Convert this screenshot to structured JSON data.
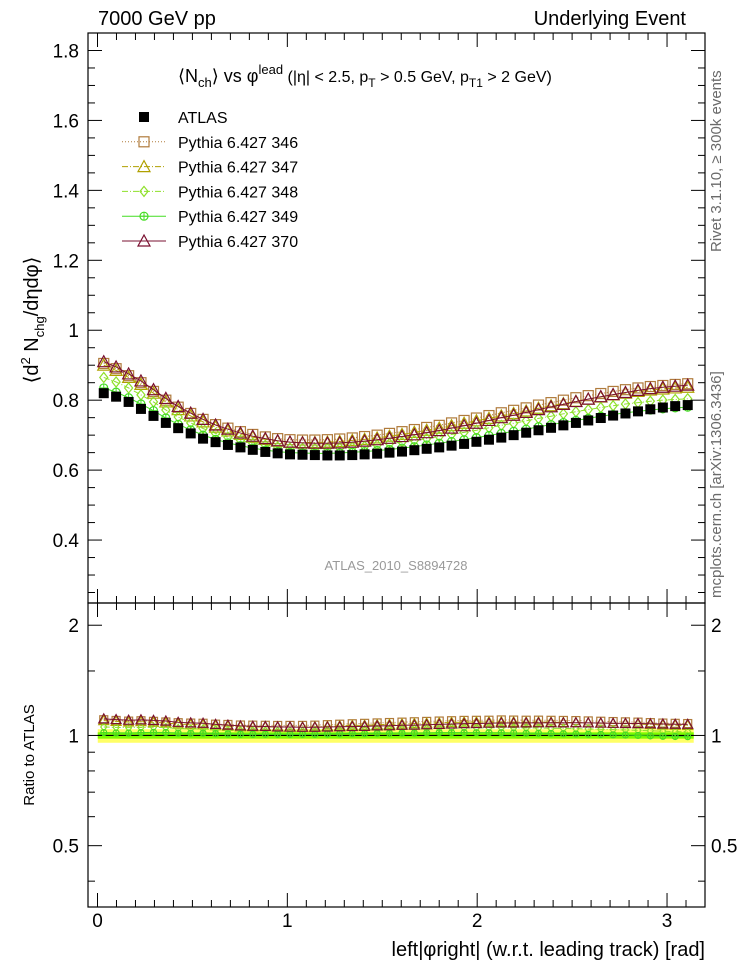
{
  "header": {
    "left": "7000 GeV pp",
    "right": "Underlying Event"
  },
  "side_labels": {
    "rivet": "Rivet 3.1.10, ≥ 300k events",
    "mcplots": "mcplots.cern.ch [arXiv:1306.3436]"
  },
  "colors": {
    "atlas": "#000000",
    "p346": "#b07b3c",
    "p347": "#b0a000",
    "p348": "#8ee02a",
    "p349": "#44dd22",
    "p370": "#7a1030",
    "band_inner": "#7cfc00",
    "band_outer": "#ffff66"
  },
  "chart_data": {
    "type": "scatter",
    "title": "<N_ch> vs φ^lead (|η| < 2.5, p_T > 0.5 GeV, p_T1 > 2 GeV)",
    "analysis_label": "ATLAS_2010_S8894728",
    "xlabel": "left|φright| (w.r.t. leading track) [rad]",
    "ylabel": "⟨d² N_chg/dηdφ⟩",
    "ratio_ylabel": "Ratio to ATLAS",
    "xlim": [
      -0.05,
      3.2
    ],
    "ylim": [
      0.22,
      1.85
    ],
    "ratio_ylim": [
      0.34,
      2.3
    ],
    "x_ticks": [
      0,
      1,
      2,
      3
    ],
    "y_ticks": [
      0.4,
      0.6,
      0.8,
      1,
      1.2,
      1.4,
      1.6,
      1.8
    ],
    "ratio_y_ticks": [
      0.5,
      1,
      2
    ],
    "legend_position": "top-left",
    "x": [
      0.033,
      0.098,
      0.164,
      0.229,
      0.295,
      0.36,
      0.425,
      0.491,
      0.556,
      0.622,
      0.687,
      0.753,
      0.818,
      0.884,
      0.949,
      1.014,
      1.08,
      1.145,
      1.211,
      1.276,
      1.342,
      1.407,
      1.473,
      1.538,
      1.604,
      1.669,
      1.734,
      1.8,
      1.865,
      1.931,
      1.996,
      2.062,
      2.127,
      2.192,
      2.258,
      2.323,
      2.389,
      2.454,
      2.52,
      2.585,
      2.651,
      2.716,
      2.781,
      2.847,
      2.912,
      2.978,
      3.043,
      3.109
    ],
    "series": [
      {
        "name": "ATLAS",
        "marker": "filled-square",
        "values": [
          0.82,
          0.81,
          0.795,
          0.775,
          0.755,
          0.735,
          0.72,
          0.705,
          0.69,
          0.68,
          0.672,
          0.665,
          0.658,
          0.652,
          0.648,
          0.645,
          0.644,
          0.643,
          0.642,
          0.642,
          0.643,
          0.645,
          0.647,
          0.65,
          0.653,
          0.657,
          0.661,
          0.665,
          0.67,
          0.675,
          0.681,
          0.687,
          0.693,
          0.7,
          0.707,
          0.714,
          0.721,
          0.728,
          0.735,
          0.742,
          0.749,
          0.756,
          0.762,
          0.768,
          0.774,
          0.779,
          0.783,
          0.786
        ]
      },
      {
        "name": "Pythia 6.427 346",
        "marker": "open-square",
        "style": "dotted",
        "values": [
          0.905,
          0.89,
          0.87,
          0.85,
          0.825,
          0.8,
          0.78,
          0.762,
          0.745,
          0.73,
          0.72,
          0.71,
          0.702,
          0.695,
          0.69,
          0.687,
          0.686,
          0.686,
          0.687,
          0.689,
          0.692,
          0.696,
          0.7,
          0.705,
          0.71,
          0.716,
          0.722,
          0.728,
          0.735,
          0.742,
          0.749,
          0.756,
          0.764,
          0.771,
          0.778,
          0.786,
          0.793,
          0.8,
          0.807,
          0.813,
          0.819,
          0.825,
          0.83,
          0.835,
          0.839,
          0.842,
          0.845,
          0.847
        ]
      },
      {
        "name": "Pythia 6.427 347",
        "marker": "open-triangle",
        "style": "dash-dot",
        "values": [
          0.9,
          0.885,
          0.865,
          0.845,
          0.82,
          0.795,
          0.773,
          0.755,
          0.738,
          0.723,
          0.712,
          0.702,
          0.694,
          0.688,
          0.683,
          0.68,
          0.679,
          0.679,
          0.68,
          0.682,
          0.685,
          0.688,
          0.692,
          0.697,
          0.702,
          0.708,
          0.714,
          0.72,
          0.727,
          0.734,
          0.741,
          0.748,
          0.755,
          0.762,
          0.769,
          0.777,
          0.784,
          0.79,
          0.797,
          0.803,
          0.809,
          0.815,
          0.82,
          0.825,
          0.829,
          0.832,
          0.835,
          0.837
        ]
      },
      {
        "name": "Pythia 6.427 348",
        "marker": "open-diamond",
        "style": "dash-dot",
        "values": [
          0.865,
          0.852,
          0.835,
          0.815,
          0.795,
          0.772,
          0.752,
          0.735,
          0.719,
          0.705,
          0.694,
          0.685,
          0.677,
          0.671,
          0.666,
          0.663,
          0.662,
          0.661,
          0.662,
          0.663,
          0.665,
          0.668,
          0.672,
          0.676,
          0.68,
          0.685,
          0.69,
          0.696,
          0.702,
          0.708,
          0.714,
          0.721,
          0.728,
          0.734,
          0.741,
          0.748,
          0.754,
          0.761,
          0.767,
          0.773,
          0.779,
          0.784,
          0.789,
          0.793,
          0.797,
          0.8,
          0.802,
          0.804
        ]
      },
      {
        "name": "Pythia 6.427 349",
        "marker": "open-circle-cross",
        "style": "solid",
        "values": [
          0.835,
          0.823,
          0.807,
          0.789,
          0.77,
          0.749,
          0.731,
          0.715,
          0.7,
          0.688,
          0.678,
          0.67,
          0.663,
          0.657,
          0.653,
          0.65,
          0.649,
          0.648,
          0.648,
          0.649,
          0.651,
          0.653,
          0.656,
          0.659,
          0.663,
          0.667,
          0.672,
          0.677,
          0.682,
          0.687,
          0.693,
          0.699,
          0.705,
          0.711,
          0.717,
          0.724,
          0.73,
          0.736,
          0.742,
          0.748,
          0.754,
          0.759,
          0.764,
          0.768,
          0.772,
          0.775,
          0.778,
          0.78
        ]
      },
      {
        "name": "Pythia 6.427 370",
        "marker": "open-triangle",
        "style": "solid",
        "values": [
          0.91,
          0.895,
          0.875,
          0.855,
          0.83,
          0.805,
          0.782,
          0.763,
          0.745,
          0.729,
          0.717,
          0.706,
          0.697,
          0.69,
          0.684,
          0.68,
          0.678,
          0.677,
          0.677,
          0.678,
          0.68,
          0.683,
          0.687,
          0.691,
          0.696,
          0.701,
          0.707,
          0.713,
          0.72,
          0.727,
          0.734,
          0.742,
          0.75,
          0.757,
          0.765,
          0.773,
          0.781,
          0.788,
          0.796,
          0.803,
          0.81,
          0.816,
          0.822,
          0.828,
          0.833,
          0.837,
          0.84,
          0.843
        ]
      }
    ]
  }
}
